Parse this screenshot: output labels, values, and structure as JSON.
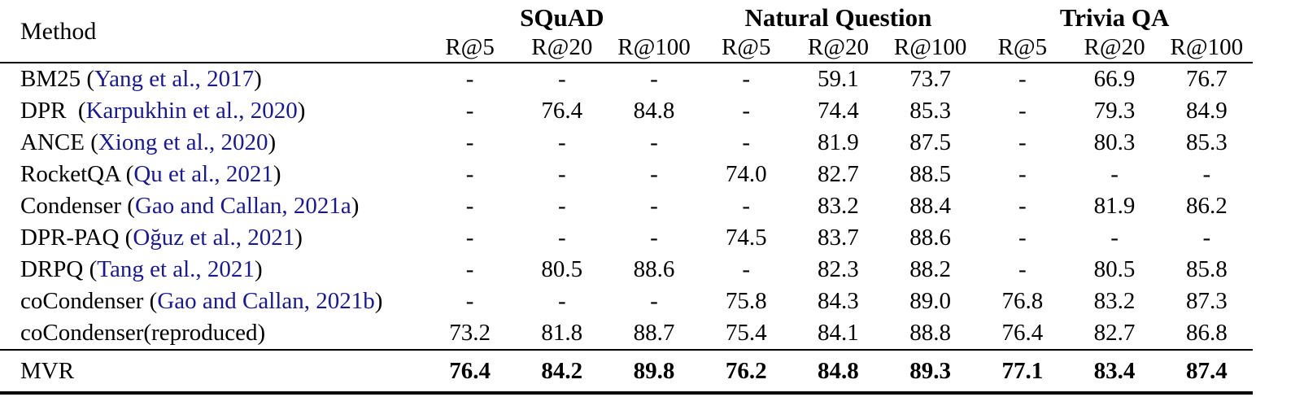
{
  "table": {
    "method_header": "Method",
    "groups": [
      {
        "label": "SQuAD"
      },
      {
        "label": "Natural Question"
      },
      {
        "label": "Trivia QA"
      }
    ],
    "metric_labels": [
      "R@5",
      "R@20",
      "R@100",
      "R@5",
      "R@20",
      "R@100",
      "R@5",
      "R@20",
      "R@100"
    ],
    "colors": {
      "citation_link": "#1a1a8c",
      "text": "#000000",
      "background": "#ffffff"
    },
    "rows": [
      {
        "method": {
          "prefix": "BM25 (",
          "citation": "Yang et al., 2017",
          "suffix": ")"
        },
        "values": [
          "-",
          "-",
          "-",
          "-",
          "59.1",
          "73.7",
          "-",
          "66.9",
          "76.7"
        ],
        "emphasis": false
      },
      {
        "method": {
          "prefix": "DPR  (",
          "citation": "Karpukhin et al., 2020",
          "suffix": ")"
        },
        "values": [
          "-",
          "76.4",
          "84.8",
          "-",
          "74.4",
          "85.3",
          "-",
          "79.3",
          "84.9"
        ],
        "emphasis": false
      },
      {
        "method": {
          "prefix": "ANCE (",
          "citation": "Xiong et al., 2020",
          "suffix": ")"
        },
        "values": [
          "-",
          "-",
          "-",
          "-",
          "81.9",
          "87.5",
          "-",
          "80.3",
          "85.3"
        ],
        "emphasis": false
      },
      {
        "method": {
          "prefix": "RocketQA (",
          "citation": "Qu et al., 2021",
          "suffix": ")"
        },
        "values": [
          "-",
          "-",
          "-",
          "74.0",
          "82.7",
          "88.5",
          "-",
          "-",
          "-"
        ],
        "emphasis": false
      },
      {
        "method": {
          "prefix": "Condenser (",
          "citation": "Gao and Callan, 2021a",
          "suffix": ")"
        },
        "values": [
          "-",
          "-",
          "-",
          "-",
          "83.2",
          "88.4",
          "-",
          "81.9",
          "86.2"
        ],
        "emphasis": false
      },
      {
        "method": {
          "prefix": "DPR-PAQ (",
          "citation": "Oğuz et al., 2021",
          "suffix": ")"
        },
        "values": [
          "-",
          "-",
          "-",
          "74.5",
          "83.7",
          "88.6",
          "-",
          "-",
          "-"
        ],
        "emphasis": false
      },
      {
        "method": {
          "prefix": "DRPQ (",
          "citation": "Tang et al., 2021",
          "suffix": ")"
        },
        "values": [
          "-",
          "80.5",
          "88.6",
          "-",
          "82.3",
          "88.2",
          "-",
          "80.5",
          "85.8"
        ],
        "emphasis": false
      },
      {
        "method": {
          "prefix": "coCondenser (",
          "citation": "Gao and Callan, 2021b",
          "suffix": ")"
        },
        "values": [
          "-",
          "-",
          "-",
          "75.8",
          "84.3",
          "89.0",
          "76.8",
          "83.2",
          "87.3"
        ],
        "emphasis": false
      },
      {
        "method": {
          "prefix": "coCondenser(reproduced)",
          "citation": "",
          "suffix": ""
        },
        "values": [
          "73.2",
          "81.8",
          "88.7",
          "75.4",
          "84.1",
          "88.8",
          "76.4",
          "82.7",
          "86.8"
        ],
        "emphasis": false
      },
      {
        "method": {
          "prefix": "MVR",
          "citation": "",
          "suffix": ""
        },
        "values": [
          "76.4",
          "84.2",
          "89.8",
          "76.2",
          "84.8",
          "89.3",
          "77.1",
          "83.4",
          "87.4"
        ],
        "emphasis": true
      }
    ]
  }
}
